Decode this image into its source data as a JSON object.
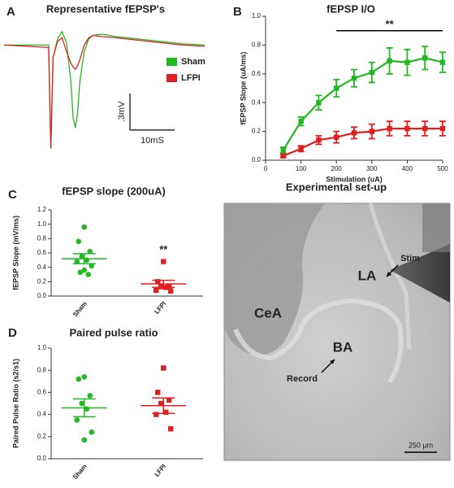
{
  "chart_data": [
    {
      "type": "line",
      "panel": "A",
      "title": "Representative fEPSP's",
      "x": [
        0,
        10,
        10.5,
        11,
        12,
        13,
        14,
        15,
        15.5,
        16,
        16.5,
        17,
        18,
        19,
        20,
        22,
        25,
        30,
        35,
        40,
        45
      ],
      "xlim": [
        0,
        45
      ],
      "ylim": [
        -0.9,
        0.17
      ],
      "series": [
        {
          "name": "Sham",
          "color": "#22b822",
          "values": [
            0,
            0,
            -0.85,
            -0.1,
            0.05,
            0.11,
            0.02,
            -0.3,
            -0.6,
            -0.68,
            -0.55,
            -0.3,
            -0.05,
            0.05,
            0.08,
            0.09,
            0.07,
            0.05,
            0.03,
            0.01,
            0
          ]
        },
        {
          "name": "LFPI",
          "color": "#e02020",
          "values": [
            0,
            -0.02,
            -0.85,
            -0.1,
            0.03,
            0.06,
            -0.05,
            -0.15,
            -0.18,
            -0.2,
            -0.17,
            -0.12,
            0,
            0.06,
            0.08,
            0.07,
            0.06,
            0.04,
            0.02,
            0,
            -0.01
          ]
        }
      ],
      "legend": "right",
      "scale_bar": {
        "y": {
          "value": 0.3,
          "label": ".3mV"
        },
        "x": {
          "value": 10,
          "label": "10mS"
        }
      }
    },
    {
      "type": "line",
      "panel": "B",
      "title": "fEPSP I/O",
      "xlabel": "Stimulation (uA)",
      "ylabel": "fEPSP Slope (uA/ms)",
      "x": [
        50,
        100,
        150,
        200,
        250,
        300,
        350,
        400,
        450,
        500
      ],
      "xlim": [
        0,
        500
      ],
      "xticks": [
        0,
        100,
        200,
        300,
        400,
        500
      ],
      "ylim": [
        0,
        1
      ],
      "yticks": [
        {
          "value": 0,
          "label": "0.0"
        },
        0.2,
        0.4,
        0.6,
        0.8,
        {
          "value": 1,
          "label": "1.0"
        }
      ],
      "series": [
        {
          "name": "Sham",
          "color": "#22b822",
          "values": [
            0.07,
            0.27,
            0.4,
            0.5,
            0.57,
            0.61,
            0.69,
            0.68,
            0.71,
            0.68
          ],
          "errors": [
            0.02,
            0.03,
            0.05,
            0.06,
            0.06,
            0.07,
            0.09,
            0.09,
            0.08,
            0.07
          ]
        },
        {
          "name": "LFPI",
          "color": "#e02020",
          "values": [
            0.03,
            0.08,
            0.14,
            0.16,
            0.19,
            0.2,
            0.22,
            0.22,
            0.22,
            0.22
          ],
          "errors": [
            0.01,
            0.02,
            0.03,
            0.04,
            0.04,
            0.05,
            0.05,
            0.05,
            0.05,
            0.05
          ]
        }
      ],
      "annotation": "**"
    },
    {
      "type": "strip",
      "panel": "C",
      "title": "fEPSP slope (200uA)",
      "ylabel": "fEPSP Slope (mV/ms)",
      "categories": [
        "Sham",
        "LFPI"
      ],
      "ylim": [
        0,
        1.2
      ],
      "yticks": [
        {
          "value": 0,
          "label": "0.0"
        },
        0.2,
        0.4,
        0.6,
        0.8,
        {
          "value": 1,
          "label": "1.0"
        },
        1.2
      ],
      "series": [
        {
          "name": "Sham",
          "color": "#22b822",
          "marker": "circle",
          "values": [
            0.96,
            0.76,
            0.62,
            0.55,
            0.5,
            0.48,
            0.42,
            0.36,
            0.33,
            0.3
          ],
          "mean": 0.52,
          "sem": 0.07
        },
        {
          "name": "LFPI",
          "color": "#e02020",
          "marker": "square",
          "values": [
            0.48,
            0.2,
            0.14,
            0.13,
            0.12,
            0.08,
            0.07
          ],
          "mean": 0.17,
          "sem": 0.05
        }
      ],
      "annotation": "**"
    },
    {
      "type": "strip",
      "panel": "D",
      "title": "Paired pulse ratio",
      "ylabel": "Paired Pulse Ratio (s2/s1)",
      "categories": [
        "Sham",
        "LFPI"
      ],
      "ylim": [
        0,
        1
      ],
      "yticks": [
        {
          "value": 0,
          "label": "0.0"
        },
        0.2,
        0.4,
        0.6,
        0.8,
        {
          "value": 1,
          "label": "1.0"
        }
      ],
      "series": [
        {
          "name": "Sham",
          "color": "#22b822",
          "marker": "circle",
          "values": [
            0.74,
            0.72,
            0.57,
            0.5,
            0.45,
            0.35,
            0.24,
            0.17
          ],
          "mean": 0.46,
          "sem": 0.08
        },
        {
          "name": "LFPI",
          "color": "#e02020",
          "marker": "square",
          "values": [
            0.82,
            0.6,
            0.53,
            0.5,
            0.42,
            0.4,
            0.27
          ],
          "mean": 0.48,
          "sem": 0.07
        }
      ]
    }
  ],
  "setup": {
    "title": "Experimental set-up",
    "labels": {
      "stim": "Stim",
      "la": "LA",
      "cea": "CeA",
      "ba": "BA",
      "record": "Record",
      "scale": "250 µm"
    }
  }
}
